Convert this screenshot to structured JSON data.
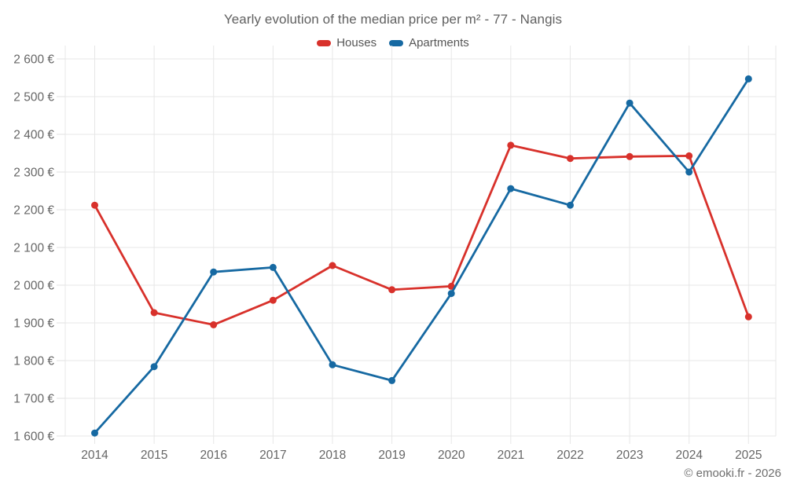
{
  "chart": {
    "title": "Yearly evolution of the median price per m² - 77 - Nangis",
    "attribution": "© emooki.fr - 2026"
  },
  "legend": {
    "items": [
      {
        "id": "houses",
        "label": "Houses",
        "color": "#d8312b"
      },
      {
        "id": "apartments",
        "label": "Apartments",
        "color": "#1669a2"
      }
    ]
  },
  "chart_data": {
    "type": "line",
    "title": "Yearly evolution of the median price per m² - 77 - Nangis",
    "xlabel": "",
    "ylabel": "",
    "categories": [
      "2014",
      "2015",
      "2016",
      "2017",
      "2018",
      "2019",
      "2020",
      "2021",
      "2022",
      "2023",
      "2024",
      "2025"
    ],
    "series": [
      {
        "name": "Houses",
        "color": "#d8312b",
        "values": [
          2212,
          1927,
          1895,
          1960,
          2052,
          1988,
          1997,
          2371,
          2336,
          2341,
          2343,
          1916
        ]
      },
      {
        "name": "Apartments",
        "color": "#1669a2",
        "values": [
          1608,
          1784,
          2035,
          2047,
          1789,
          1747,
          1978,
          2256,
          2212,
          2483,
          2300,
          2547
        ]
      }
    ],
    "ylim": [
      1600,
      2600
    ],
    "y_tick_step": 100,
    "y_ticks": [
      {
        "value": 1600,
        "label": "1 600 €"
      },
      {
        "value": 1700,
        "label": "1 700 €"
      },
      {
        "value": 1800,
        "label": "1 800 €"
      },
      {
        "value": 1900,
        "label": "1 900 €"
      },
      {
        "value": 2000,
        "label": "2 000 €"
      },
      {
        "value": 2100,
        "label": "2 100 €"
      },
      {
        "value": 2200,
        "label": "2 200 €"
      },
      {
        "value": 2300,
        "label": "2 300 €"
      },
      {
        "value": 2400,
        "label": "2 400 €"
      },
      {
        "value": 2500,
        "label": "2 500 €"
      },
      {
        "value": 2600,
        "label": "2 600 €"
      }
    ],
    "grid": true,
    "legend_position": "top"
  }
}
